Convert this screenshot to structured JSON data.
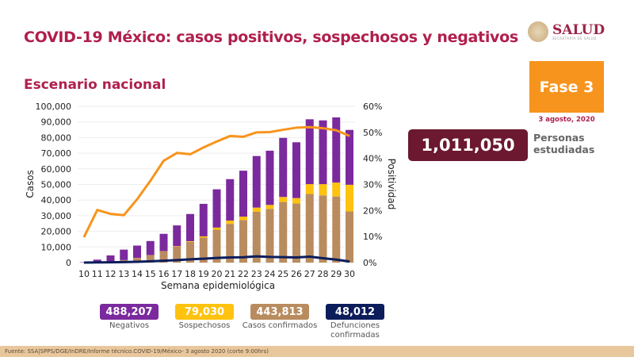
{
  "header": {
    "title": "COVID-19 México: casos positivos, sospechosos y negativos",
    "subtitle": "Escenario nacional"
  },
  "logo": {
    "text": "SALUD",
    "subtext": "SECRETARÍA DE SALUD"
  },
  "phase": {
    "label": "Fase 3",
    "date": "3 agosto, 2020"
  },
  "studied": {
    "value": "1,011,050",
    "label_1": "Personas",
    "label_2": "estudiadas"
  },
  "summary": [
    {
      "value": "488,207",
      "label": "Negativos",
      "color": "#7b2a9e"
    },
    {
      "value": "79,030",
      "label": "Sospechosos",
      "color": "#ffc20e"
    },
    {
      "value": "443,813",
      "label": "Casos confirmados",
      "color": "#b98c5f"
    },
    {
      "value": "48,012",
      "label": "Defunciones confirmadas",
      "color": "#0c1d5c"
    }
  ],
  "footer": "Fuente: SSA|SPPS/DGE/InDRE/Informe técnico.COVID-19/México- 3 agosto 2020 (corte 9:00hrs)",
  "chart_data": {
    "type": "bar",
    "stacked": true,
    "xlabel": "Semana epidemiológica",
    "ylabel": "Casos",
    "y2label": "Positividad",
    "ylim": [
      0,
      100000
    ],
    "y2lim": [
      0,
      60
    ],
    "yticks": [
      "0",
      "10,000",
      "20,000",
      "30,000",
      "40,000",
      "50,000",
      "60,000",
      "70,000",
      "80,000",
      "90,000",
      "100,000"
    ],
    "y2ticks": [
      "0%",
      "10%",
      "20%",
      "30%",
      "40%",
      "50%",
      "60%"
    ],
    "categories": [
      "10",
      "11",
      "12",
      "13",
      "14",
      "15",
      "16",
      "17",
      "18",
      "19",
      "20",
      "21",
      "22",
      "23",
      "24",
      "25",
      "26",
      "27",
      "28",
      "29",
      "30"
    ],
    "series": [
      {
        "key": "confirmados",
        "color": "#b98c5f",
        "values": [
          100,
          200,
          500,
          1500,
          2900,
          4600,
          7100,
          10200,
          13300,
          16000,
          21100,
          24800,
          27200,
          32500,
          34400,
          38800,
          37800,
          43900,
          43000,
          42300,
          32800
        ]
      },
      {
        "key": "sospechosos",
        "color": "#ffc20e",
        "values": [
          0,
          0,
          50,
          100,
          100,
          150,
          200,
          300,
          400,
          800,
          1300,
          2100,
          2200,
          2700,
          2500,
          3200,
          3500,
          6300,
          7200,
          8900,
          17000
        ]
      },
      {
        "key": "negativos",
        "color": "#7b2a9e",
        "values": [
          200,
          1700,
          4050,
          6700,
          7900,
          9050,
          11100,
          13300,
          17400,
          20800,
          24500,
          26500,
          29400,
          33000,
          34700,
          37800,
          35700,
          41500,
          40800,
          41700,
          35100
        ]
      },
      {
        "key": "positividad",
        "type": "line",
        "axis": "right",
        "color": "#f7941d",
        "values": [
          9.8,
          20.2,
          18.7,
          18.2,
          24.3,
          31.4,
          39.1,
          42.1,
          41.6,
          44.2,
          46.5,
          48.6,
          48.3,
          50.0,
          50.1,
          51.0,
          51.8,
          52.0,
          51.6,
          50.8,
          48.6
        ]
      },
      {
        "key": "defunciones",
        "type": "line",
        "axis": "left",
        "color": "#0c1d5c",
        "values": [
          0,
          100,
          200,
          300,
          500,
          800,
          1200,
          1600,
          2100,
          2500,
          3000,
          3300,
          3400,
          4000,
          3600,
          3500,
          3300,
          3800,
          2800,
          1900,
          700
        ]
      }
    ]
  }
}
